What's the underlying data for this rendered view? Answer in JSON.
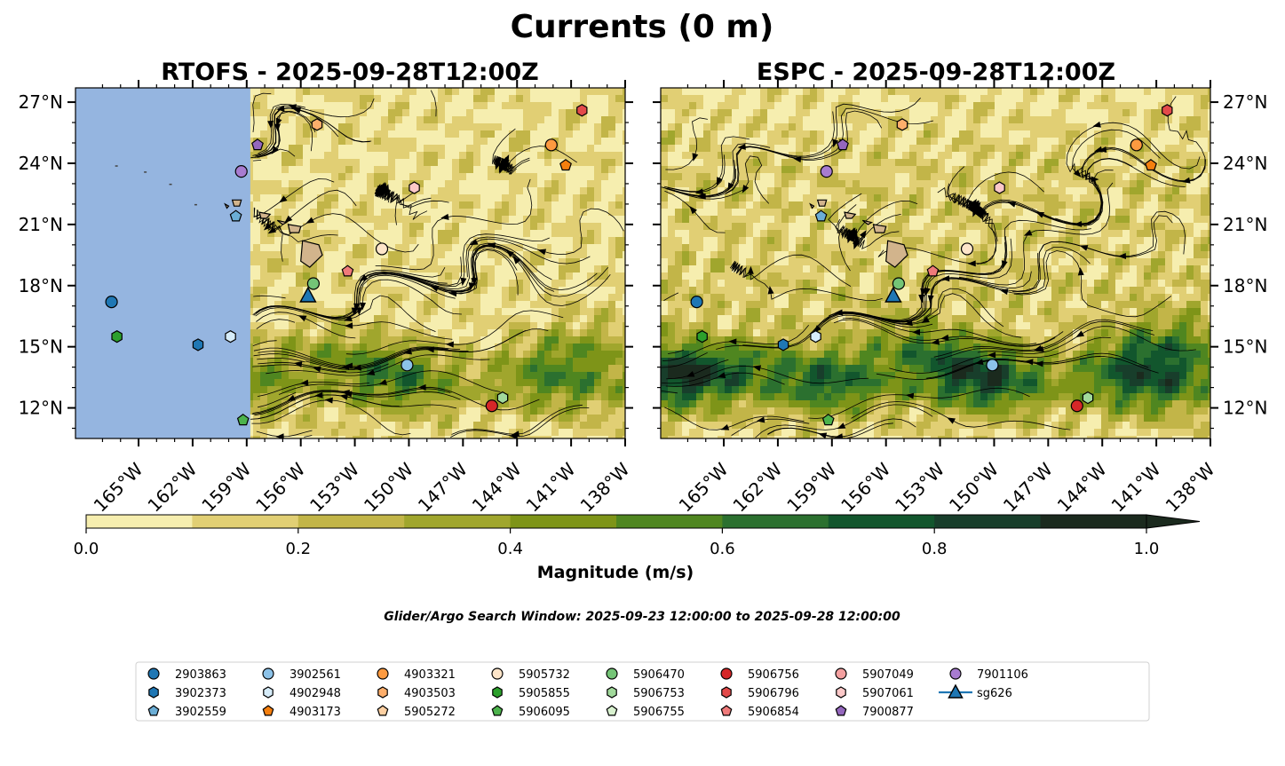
{
  "figure": {
    "title": "Currents (0 m)",
    "search_window": "Glider/Argo Search Window: 2025-09-23 12:00:00 to 2025-09-28 12:00:00"
  },
  "chart_data": [
    {
      "type": "heatmap",
      "title": "RTOFS - 2025-09-28T12:00Z",
      "xlim": [
        -168.5,
        -138.0
      ],
      "ylim": [
        10.5,
        27.7
      ],
      "x_ticks": [
        "165°W",
        "162°W",
        "159°W",
        "156°W",
        "153°W",
        "150°W",
        "147°W",
        "144°W",
        "141°W",
        "138°W"
      ],
      "y_ticks": [
        "12°N",
        "15°N",
        "18°N",
        "21°N",
        "24°N",
        "27°N"
      ],
      "land_mask_west_of": -158.8,
      "overlay": "streamlines",
      "observations": [
        {
          "id": "2903863",
          "lon": -166.5,
          "lat": 17.2
        },
        {
          "id": "5905855",
          "lon": -166.2,
          "lat": 15.5
        },
        {
          "id": "3902373",
          "lon": -161.7,
          "lat": 15.1
        },
        {
          "id": "4902948",
          "lon": -159.9,
          "lat": 15.5
        },
        {
          "id": "5906095",
          "lon": -159.2,
          "lat": 11.4
        },
        {
          "id": "7901106",
          "lon": -159.3,
          "lat": 23.6
        },
        {
          "id": "3902559",
          "lon": -159.6,
          "lat": 21.4
        },
        {
          "id": "7900877",
          "lon": -158.4,
          "lat": 24.9
        },
        {
          "id": "5906470",
          "lon": -155.3,
          "lat": 18.1
        },
        {
          "id": "sg626",
          "lon": -155.6,
          "lat": 17.5
        },
        {
          "id": "4903503",
          "lon": -155.1,
          "lat": 25.9
        },
        {
          "id": "5906854",
          "lon": -153.4,
          "lat": 18.7
        },
        {
          "id": "5905732",
          "lon": -151.5,
          "lat": 19.8
        },
        {
          "id": "3902561",
          "lon": -150.1,
          "lat": 14.1
        },
        {
          "id": "5907061",
          "lon": -149.7,
          "lat": 22.8
        },
        {
          "id": "5906756",
          "lon": -145.4,
          "lat": 12.1
        },
        {
          "id": "5906753",
          "lon": -144.8,
          "lat": 12.5
        },
        {
          "id": "4903321",
          "lon": -142.1,
          "lat": 24.9
        },
        {
          "id": "4903173",
          "lon": -141.3,
          "lat": 23.9
        },
        {
          "id": "5906796",
          "lon": -140.4,
          "lat": 26.6
        }
      ]
    },
    {
      "type": "heatmap",
      "title": "ESPC - 2025-09-28T12:00Z",
      "xlim": [
        -168.5,
        -138.0
      ],
      "ylim": [
        10.5,
        27.7
      ],
      "x_ticks": [
        "165°W",
        "162°W",
        "159°W",
        "156°W",
        "153°W",
        "150°W",
        "147°W",
        "144°W",
        "141°W",
        "138°W"
      ],
      "y_ticks": [
        "12°N",
        "15°N",
        "18°N",
        "21°N",
        "24°N",
        "27°N"
      ],
      "overlay": "streamlines",
      "observations": [
        {
          "id": "2903863",
          "lon": -166.5,
          "lat": 17.2
        },
        {
          "id": "5905855",
          "lon": -166.2,
          "lat": 15.5
        },
        {
          "id": "3902373",
          "lon": -161.7,
          "lat": 15.1
        },
        {
          "id": "4902948",
          "lon": -159.9,
          "lat": 15.5
        },
        {
          "id": "5906095",
          "lon": -159.2,
          "lat": 11.4
        },
        {
          "id": "7901106",
          "lon": -159.3,
          "lat": 23.6
        },
        {
          "id": "3902559",
          "lon": -159.6,
          "lat": 21.4
        },
        {
          "id": "7900877",
          "lon": -158.4,
          "lat": 24.9
        },
        {
          "id": "5906470",
          "lon": -155.3,
          "lat": 18.1
        },
        {
          "id": "sg626",
          "lon": -155.6,
          "lat": 17.5
        },
        {
          "id": "4903503",
          "lon": -155.1,
          "lat": 25.9
        },
        {
          "id": "5906854",
          "lon": -153.4,
          "lat": 18.7
        },
        {
          "id": "5905732",
          "lon": -151.5,
          "lat": 19.8
        },
        {
          "id": "3902561",
          "lon": -150.1,
          "lat": 14.1
        },
        {
          "id": "5907061",
          "lon": -149.7,
          "lat": 22.8
        },
        {
          "id": "5906756",
          "lon": -145.4,
          "lat": 12.1
        },
        {
          "id": "5906753",
          "lon": -144.8,
          "lat": 12.5
        },
        {
          "id": "4903321",
          "lon": -142.1,
          "lat": 24.9
        },
        {
          "id": "4903173",
          "lon": -141.3,
          "lat": 23.9
        },
        {
          "id": "5906796",
          "lon": -140.4,
          "lat": 26.6
        }
      ]
    }
  ],
  "colorbar": {
    "label": "Magnitude (m/s)",
    "levels": [
      0.0,
      0.1,
      0.2,
      0.3,
      0.4,
      0.5,
      0.6,
      0.7,
      0.8,
      0.9,
      1.0
    ],
    "tick_labels": [
      "0.0",
      "0.2",
      "0.4",
      "0.6",
      "0.8",
      "1.0"
    ],
    "tick_values": [
      0.0,
      0.2,
      0.4,
      0.6,
      0.8,
      1.0
    ],
    "colors": [
      "#f6eeaf",
      "#e1cf74",
      "#c2b548",
      "#a0a62d",
      "#7e9418",
      "#4f8620",
      "#2b702f",
      "#12562d",
      "#183e2b",
      "#1b2a1e"
    ],
    "extend": "max"
  },
  "colors": {
    "land": "#d2b48c",
    "masked": "#95b5e0",
    "glider": "#1f77b4"
  },
  "legend": [
    {
      "label": "2903863",
      "color": "#1f77b4",
      "marker": "circle"
    },
    {
      "label": "3902373",
      "color": "#1f77b4",
      "marker": "hexagon"
    },
    {
      "label": "3902559",
      "color": "#6baed6",
      "marker": "pentagon"
    },
    {
      "label": "3902561",
      "color": "#8cc2e8",
      "marker": "circle"
    },
    {
      "label": "4902948",
      "color": "#d6ecf9",
      "marker": "hexagon"
    },
    {
      "label": "4903173",
      "color": "#f57f0e",
      "marker": "pentagon"
    },
    {
      "label": "4903321",
      "color": "#fd9a40",
      "marker": "circle"
    },
    {
      "label": "4903503",
      "color": "#fdae6b",
      "marker": "hexagon"
    },
    {
      "label": "5905272",
      "color": "#fdd0a2",
      "marker": "pentagon"
    },
    {
      "label": "5905732",
      "color": "#fde5c9",
      "marker": "circle"
    },
    {
      "label": "5905855",
      "color": "#2ca02c",
      "marker": "hexagon"
    },
    {
      "label": "5906095",
      "color": "#4cb34c",
      "marker": "pentagon"
    },
    {
      "label": "5906470",
      "color": "#74c476",
      "marker": "circle"
    },
    {
      "label": "5906753",
      "color": "#a1d99b",
      "marker": "hexagon"
    },
    {
      "label": "5906755",
      "color": "#d9f2d0",
      "marker": "pentagon"
    },
    {
      "label": "5906756",
      "color": "#d62728",
      "marker": "circle"
    },
    {
      "label": "5906796",
      "color": "#e34a4a",
      "marker": "hexagon"
    },
    {
      "label": "5906854",
      "color": "#ef7a7a",
      "marker": "pentagon"
    },
    {
      "label": "5907049",
      "color": "#f4a0a0",
      "marker": "circle"
    },
    {
      "label": "5907061",
      "color": "#fbc8c8",
      "marker": "hexagon"
    },
    {
      "label": "7900877",
      "color": "#9467bd",
      "marker": "pentagon"
    },
    {
      "label": "7901106",
      "color": "#a87cd0",
      "marker": "circle"
    },
    {
      "label": "sg626",
      "color": "#1f77b4",
      "marker": "triangle-line"
    }
  ]
}
